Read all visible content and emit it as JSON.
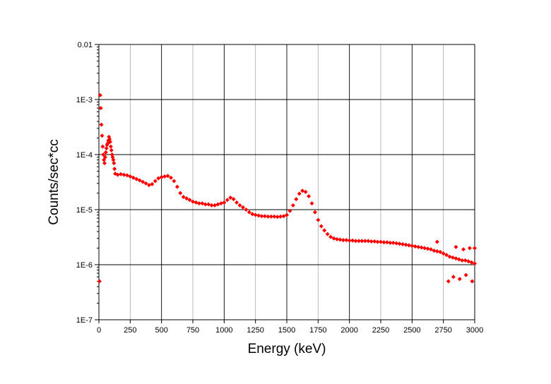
{
  "chart_data": {
    "type": "scatter",
    "title": "",
    "xlabel": "Energy (keV)",
    "ylabel": "Counts/sec*cc",
    "xlim": [
      0,
      3000
    ],
    "ylim": [
      1e-07,
      0.01
    ],
    "y_scale": "log",
    "grid": true,
    "legend": "none",
    "marker": "diamond",
    "marker_color": "#ff0000",
    "x_tick_labels": [
      "0",
      "250",
      "500",
      "750",
      "1000",
      "1250",
      "1500",
      "1750",
      "2000",
      "2250",
      "2500",
      "2750",
      "3000"
    ],
    "y_tick_labels": [
      "1E-7",
      "1E-6",
      "1E-5",
      "1E-4",
      "1E-3",
      "0.01"
    ],
    "series": [
      {
        "points": [
          [
            5,
            5e-07
          ],
          [
            10,
            0.0012
          ],
          [
            15,
            0.0007
          ],
          [
            20,
            0.00035
          ],
          [
            25,
            0.00022
          ],
          [
            30,
            0.00014
          ],
          [
            35,
            0.0001
          ],
          [
            40,
            8e-05
          ],
          [
            45,
            7e-05
          ],
          [
            50,
            9e-05
          ],
          [
            55,
            0.00011
          ],
          [
            60,
            0.00013
          ],
          [
            65,
            0.00015
          ],
          [
            70,
            0.00016
          ],
          [
            75,
            0.00018
          ],
          [
            80,
            0.00021
          ],
          [
            85,
            0.00019
          ],
          [
            90,
            0.00017
          ],
          [
            95,
            0.00014
          ],
          [
            100,
            0.00012
          ],
          [
            105,
            0.0001
          ],
          [
            110,
            9e-05
          ],
          [
            115,
            8e-05
          ],
          [
            120,
            7e-05
          ],
          [
            125,
            5.5e-05
          ],
          [
            130,
            4.5e-05
          ],
          [
            150,
            4.3e-05
          ],
          [
            175,
            4.4e-05
          ],
          [
            200,
            4.3e-05
          ],
          [
            225,
            4.2e-05
          ],
          [
            250,
            4e-05
          ],
          [
            275,
            3.8e-05
          ],
          [
            300,
            3.6e-05
          ],
          [
            325,
            3.4e-05
          ],
          [
            350,
            3.2e-05
          ],
          [
            375,
            3e-05
          ],
          [
            400,
            2.8e-05
          ],
          [
            425,
            2.9e-05
          ],
          [
            450,
            3.3e-05
          ],
          [
            475,
            3.7e-05
          ],
          [
            500,
            3.9e-05
          ],
          [
            525,
            4e-05
          ],
          [
            550,
            4.1e-05
          ],
          [
            575,
            3.8e-05
          ],
          [
            600,
            3.3e-05
          ],
          [
            625,
            2.6e-05
          ],
          [
            650,
            2e-05
          ],
          [
            675,
            1.7e-05
          ],
          [
            700,
            1.6e-05
          ],
          [
            725,
            1.5e-05
          ],
          [
            750,
            1.4e-05
          ],
          [
            775,
            1.35e-05
          ],
          [
            800,
            1.3e-05
          ],
          [
            825,
            1.3e-05
          ],
          [
            850,
            1.25e-05
          ],
          [
            875,
            1.25e-05
          ],
          [
            900,
            1.2e-05
          ],
          [
            925,
            1.2e-05
          ],
          [
            950,
            1.25e-05
          ],
          [
            975,
            1.3e-05
          ],
          [
            1000,
            1.35e-05
          ],
          [
            1025,
            1.5e-05
          ],
          [
            1050,
            1.65e-05
          ],
          [
            1075,
            1.55e-05
          ],
          [
            1100,
            1.35e-05
          ],
          [
            1125,
            1.2e-05
          ],
          [
            1150,
            1.1e-05
          ],
          [
            1175,
            1e-05
          ],
          [
            1200,
            9e-06
          ],
          [
            1225,
            8.3e-06
          ],
          [
            1250,
            8e-06
          ],
          [
            1275,
            7.8e-06
          ],
          [
            1300,
            7.6e-06
          ],
          [
            1325,
            7.6e-06
          ],
          [
            1350,
            7.5e-06
          ],
          [
            1375,
            7.5e-06
          ],
          [
            1400,
            7.5e-06
          ],
          [
            1425,
            7.4e-06
          ],
          [
            1450,
            7.5e-06
          ],
          [
            1475,
            7.6e-06
          ],
          [
            1500,
            8e-06
          ],
          [
            1525,
            9.5e-06
          ],
          [
            1550,
            1.2e-05
          ],
          [
            1575,
            1.55e-05
          ],
          [
            1600,
            1.95e-05
          ],
          [
            1625,
            2.2e-05
          ],
          [
            1650,
            2.1e-05
          ],
          [
            1675,
            1.75e-05
          ],
          [
            1700,
            1.3e-05
          ],
          [
            1725,
            9e-06
          ],
          [
            1750,
            6.5e-06
          ],
          [
            1775,
            5e-06
          ],
          [
            1800,
            4.2e-06
          ],
          [
            1825,
            3.6e-06
          ],
          [
            1850,
            3.2e-06
          ],
          [
            1875,
            3e-06
          ],
          [
            1900,
            2.9e-06
          ],
          [
            1925,
            2.85e-06
          ],
          [
            1950,
            2.8e-06
          ],
          [
            1975,
            2.8e-06
          ],
          [
            2000,
            2.75e-06
          ],
          [
            2025,
            2.75e-06
          ],
          [
            2050,
            2.7e-06
          ],
          [
            2075,
            2.7e-06
          ],
          [
            2100,
            2.7e-06
          ],
          [
            2125,
            2.7e-06
          ],
          [
            2150,
            2.7e-06
          ],
          [
            2175,
            2.65e-06
          ],
          [
            2200,
            2.65e-06
          ],
          [
            2225,
            2.6e-06
          ],
          [
            2250,
            2.6e-06
          ],
          [
            2275,
            2.55e-06
          ],
          [
            2300,
            2.55e-06
          ],
          [
            2325,
            2.5e-06
          ],
          [
            2350,
            2.5e-06
          ],
          [
            2375,
            2.45e-06
          ],
          [
            2400,
            2.4e-06
          ],
          [
            2425,
            2.35e-06
          ],
          [
            2450,
            2.3e-06
          ],
          [
            2475,
            2.25e-06
          ],
          [
            2500,
            2.2e-06
          ],
          [
            2525,
            2.15e-06
          ],
          [
            2550,
            2.1e-06
          ],
          [
            2575,
            2.05e-06
          ],
          [
            2600,
            2e-06
          ],
          [
            2625,
            1.95e-06
          ],
          [
            2650,
            1.9e-06
          ],
          [
            2675,
            1.8e-06
          ],
          [
            2700,
            1.75e-06
          ],
          [
            2725,
            1.7e-06
          ],
          [
            2750,
            1.6e-06
          ],
          [
            2775,
            1.5e-06
          ],
          [
            2800,
            1.4e-06
          ],
          [
            2825,
            1.35e-06
          ],
          [
            2850,
            1.3e-06
          ],
          [
            2875,
            1.25e-06
          ],
          [
            2900,
            1.2e-06
          ],
          [
            2925,
            1.2e-06
          ],
          [
            2950,
            1.15e-06
          ],
          [
            2975,
            1.1e-06
          ],
          [
            3000,
            1.05e-06
          ],
          [
            2790,
            5e-07
          ],
          [
            2830,
            6e-07
          ],
          [
            2880,
            5.5e-07
          ],
          [
            2930,
            6.5e-07
          ],
          [
            2980,
            5e-07
          ],
          [
            3000,
            2e-06
          ],
          [
            2960,
            2e-06
          ],
          [
            2910,
            1.9e-06
          ],
          [
            2850,
            2.1e-06
          ],
          [
            2700,
            2.6e-06
          ]
        ]
      }
    ]
  }
}
